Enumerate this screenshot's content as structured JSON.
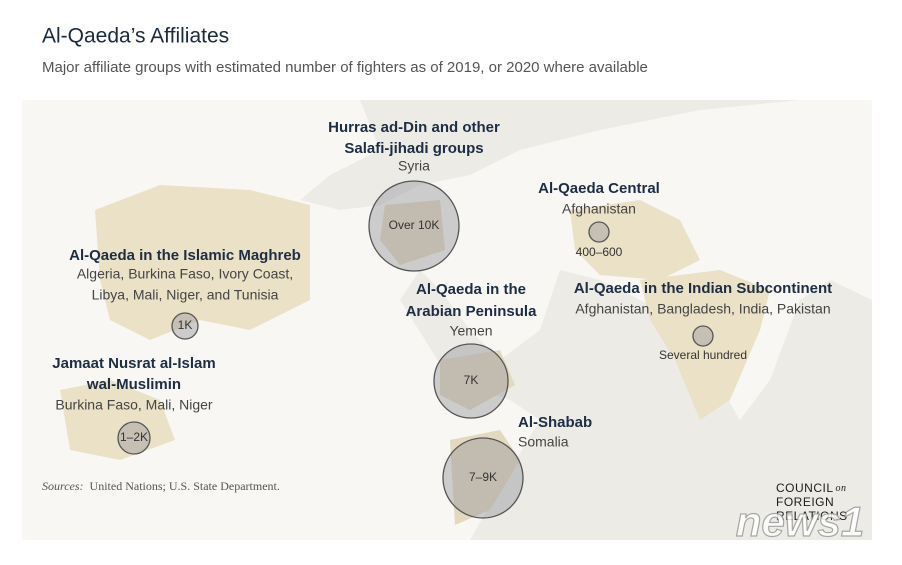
{
  "header": {
    "title": "Al-Qaeda’s Affiliates",
    "subtitle": "Major affiliate groups with estimated number of fighters as of 2019, or 2020 where available"
  },
  "affiliates": [
    {
      "name": [
        "Hurras ad-Din and other",
        "Salafi-jihadi groups"
      ],
      "countries": [
        "Syria"
      ],
      "estimate": "Over 10K"
    },
    {
      "name": [
        "Al-Qaeda Central"
      ],
      "countries": [
        "Afghanistan"
      ],
      "estimate": "400–600"
    },
    {
      "name": [
        "Al-Qaeda in the Islamic Maghreb"
      ],
      "countries": [
        "Algeria, Burkina Faso, Ivory Coast,",
        "Libya, Mali, Niger, and Tunisia"
      ],
      "estimate": "1K"
    },
    {
      "name": [
        "Al-Qaeda in the Indian Subcontinent"
      ],
      "countries": [
        "Afghanistan, Bangladesh, India, Pakistan"
      ],
      "estimate": "Several hundred"
    },
    {
      "name": [
        "Al-Qaeda in the",
        "Arabian Peninsula"
      ],
      "countries": [
        "Yemen"
      ],
      "estimate": "7K"
    },
    {
      "name": [
        "Jamaat Nusrat al-Islam",
        "wal-Muslimin"
      ],
      "countries": [
        "Burkina Faso, Mali, Niger"
      ],
      "estimate": "1–2K"
    },
    {
      "name": [
        "Al-Shabab"
      ],
      "countries": [
        "Somalia"
      ],
      "estimate": "7–9K"
    }
  ],
  "source": {
    "label": "Sources:",
    "text": "United Nations; U.S. State Department."
  },
  "logo": [
    "COUNCIL",
    "on",
    "FOREIGN",
    "RELATIONS"
  ],
  "watermark": "news1"
}
